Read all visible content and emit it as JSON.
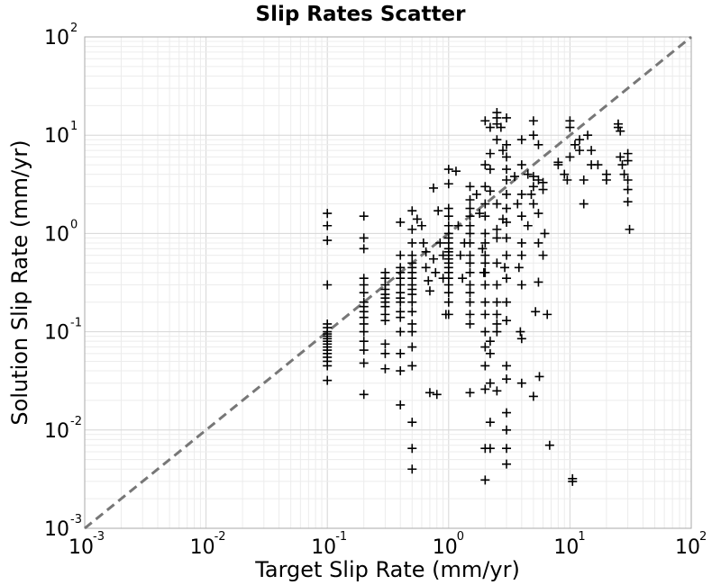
{
  "chart_data": {
    "type": "scatter",
    "title": "Slip Rates Scatter",
    "xlabel": "Target Slip Rate (mm/yr)",
    "ylabel": "Solution Slip Rate (mm/yr)",
    "x_scale": "log",
    "y_scale": "log",
    "xlim": [
      0.001,
      100
    ],
    "ylim": [
      0.001,
      100
    ],
    "x_ticks": [
      {
        "base": "10",
        "exp": "-3"
      },
      {
        "base": "10",
        "exp": "-2"
      },
      {
        "base": "10",
        "exp": "-1"
      },
      {
        "base": "10",
        "exp": "0"
      },
      {
        "base": "10",
        "exp": "1"
      },
      {
        "base": "10",
        "exp": "2"
      }
    ],
    "y_ticks": [
      {
        "base": "10",
        "exp": "-3"
      },
      {
        "base": "10",
        "exp": "-2"
      },
      {
        "base": "10",
        "exp": "-1"
      },
      {
        "base": "10",
        "exp": "0"
      },
      {
        "base": "10",
        "exp": "1"
      },
      {
        "base": "10",
        "exp": "2"
      }
    ],
    "grid": true,
    "marker": "+",
    "marker_color": "#000000",
    "reference_line": {
      "style": "dashed",
      "color": "#777777",
      "from": [
        0.001,
        0.001
      ],
      "to": [
        100,
        100
      ]
    },
    "points": [
      [
        0.1,
        1.6
      ],
      [
        0.1,
        1.2
      ],
      [
        0.1,
        0.85
      ],
      [
        0.1,
        0.3
      ],
      [
        0.1,
        0.12
      ],
      [
        0.1,
        0.11
      ],
      [
        0.1,
        0.1
      ],
      [
        0.1,
        0.095
      ],
      [
        0.1,
        0.09
      ],
      [
        0.1,
        0.085
      ],
      [
        0.1,
        0.08
      ],
      [
        0.1,
        0.075
      ],
      [
        0.1,
        0.07
      ],
      [
        0.1,
        0.065
      ],
      [
        0.1,
        0.06
      ],
      [
        0.1,
        0.055
      ],
      [
        0.1,
        0.05
      ],
      [
        0.1,
        0.045
      ],
      [
        0.1,
        0.032
      ],
      [
        0.2,
        1.5
      ],
      [
        0.2,
        0.9
      ],
      [
        0.2,
        0.7
      ],
      [
        0.2,
        0.35
      ],
      [
        0.2,
        0.3
      ],
      [
        0.2,
        0.25
      ],
      [
        0.2,
        0.2
      ],
      [
        0.2,
        0.18
      ],
      [
        0.2,
        0.16
      ],
      [
        0.2,
        0.14
      ],
      [
        0.2,
        0.12
      ],
      [
        0.2,
        0.1
      ],
      [
        0.2,
        0.08
      ],
      [
        0.2,
        0.065
      ],
      [
        0.2,
        0.048
      ],
      [
        0.2,
        0.023
      ],
      [
        0.3,
        0.4
      ],
      [
        0.3,
        0.35
      ],
      [
        0.3,
        0.3
      ],
      [
        0.3,
        0.27
      ],
      [
        0.3,
        0.24
      ],
      [
        0.3,
        0.22
      ],
      [
        0.3,
        0.2
      ],
      [
        0.3,
        0.18
      ],
      [
        0.3,
        0.15
      ],
      [
        0.3,
        0.13
      ],
      [
        0.3,
        0.075
      ],
      [
        0.3,
        0.06
      ],
      [
        0.3,
        0.042
      ],
      [
        0.4,
        1.3
      ],
      [
        0.4,
        0.6
      ],
      [
        0.4,
        0.45
      ],
      [
        0.4,
        0.4
      ],
      [
        0.4,
        0.35
      ],
      [
        0.4,
        0.3
      ],
      [
        0.4,
        0.25
      ],
      [
        0.4,
        0.22
      ],
      [
        0.4,
        0.2
      ],
      [
        0.4,
        0.16
      ],
      [
        0.4,
        0.14
      ],
      [
        0.4,
        0.1
      ],
      [
        0.4,
        0.06
      ],
      [
        0.4,
        0.04
      ],
      [
        0.4,
        0.018
      ],
      [
        0.5,
        1.7
      ],
      [
        0.5,
        1.1
      ],
      [
        0.5,
        0.8
      ],
      [
        0.5,
        0.6
      ],
      [
        0.5,
        0.5
      ],
      [
        0.5,
        0.45
      ],
      [
        0.5,
        0.4
      ],
      [
        0.5,
        0.35
      ],
      [
        0.5,
        0.3
      ],
      [
        0.5,
        0.27
      ],
      [
        0.5,
        0.24
      ],
      [
        0.5,
        0.2
      ],
      [
        0.5,
        0.16
      ],
      [
        0.5,
        0.12
      ],
      [
        0.5,
        0.1
      ],
      [
        0.5,
        0.07
      ],
      [
        0.5,
        0.045
      ],
      [
        0.5,
        0.012
      ],
      [
        0.5,
        0.0065
      ],
      [
        0.5,
        0.004
      ],
      [
        0.55,
        1.4
      ],
      [
        0.6,
        1.2
      ],
      [
        0.62,
        0.8
      ],
      [
        0.65,
        0.65
      ],
      [
        0.65,
        0.45
      ],
      [
        0.68,
        0.33
      ],
      [
        0.7,
        0.26
      ],
      [
        0.7,
        0.024
      ],
      [
        0.75,
        2.9
      ],
      [
        0.75,
        0.55
      ],
      [
        0.78,
        0.4
      ],
      [
        0.8,
        0.023
      ],
      [
        0.82,
        1.7
      ],
      [
        0.85,
        0.8
      ],
      [
        0.9,
        0.6
      ],
      [
        0.9,
        0.35
      ],
      [
        0.95,
        0.15
      ],
      [
        1.0,
        4.5
      ],
      [
        1.0,
        3.2
      ],
      [
        1.0,
        1.8
      ],
      [
        1.0,
        1.5
      ],
      [
        1.0,
        1.2
      ],
      [
        1.0,
        1.0
      ],
      [
        1.0,
        0.9
      ],
      [
        1.0,
        0.8
      ],
      [
        1.0,
        0.7
      ],
      [
        1.0,
        0.65
      ],
      [
        1.0,
        0.6
      ],
      [
        1.0,
        0.55
      ],
      [
        1.0,
        0.5
      ],
      [
        1.0,
        0.45
      ],
      [
        1.0,
        0.4
      ],
      [
        1.0,
        0.35
      ],
      [
        1.0,
        0.3
      ],
      [
        1.0,
        0.25
      ],
      [
        1.0,
        0.2
      ],
      [
        1.0,
        0.15
      ],
      [
        1.15,
        4.3
      ],
      [
        1.2,
        1.2
      ],
      [
        1.25,
        0.6
      ],
      [
        1.3,
        0.35
      ],
      [
        1.35,
        0.8
      ],
      [
        1.5,
        3.0
      ],
      [
        1.5,
        2.2
      ],
      [
        1.5,
        1.8
      ],
      [
        1.5,
        1.5
      ],
      [
        1.5,
        1.2
      ],
      [
        1.5,
        1.0
      ],
      [
        1.5,
        0.8
      ],
      [
        1.5,
        0.6
      ],
      [
        1.5,
        0.5
      ],
      [
        1.5,
        0.4
      ],
      [
        1.5,
        0.3
      ],
      [
        1.5,
        0.25
      ],
      [
        1.5,
        0.2
      ],
      [
        1.5,
        0.15
      ],
      [
        1.5,
        0.12
      ],
      [
        1.5,
        0.024
      ],
      [
        1.7,
        2.5
      ],
      [
        1.8,
        1.6
      ],
      [
        1.9,
        0.7
      ],
      [
        1.95,
        0.4
      ],
      [
        2.0,
        14
      ],
      [
        2.0,
        5.0
      ],
      [
        2.0,
        3.0
      ],
      [
        2.0,
        2.0
      ],
      [
        2.0,
        1.5
      ],
      [
        2.0,
        1.0
      ],
      [
        2.0,
        0.8
      ],
      [
        2.0,
        0.6
      ],
      [
        2.0,
        0.5
      ],
      [
        2.0,
        0.4
      ],
      [
        2.0,
        0.3
      ],
      [
        2.0,
        0.2
      ],
      [
        2.0,
        0.15
      ],
      [
        2.0,
        0.1
      ],
      [
        2.0,
        0.07
      ],
      [
        2.0,
        0.045
      ],
      [
        2.0,
        0.026
      ],
      [
        2.0,
        0.0065
      ],
      [
        2.0,
        0.0031
      ],
      [
        2.2,
        12
      ],
      [
        2.2,
        6.5
      ],
      [
        2.2,
        4.5
      ],
      [
        2.2,
        2.7
      ],
      [
        2.2,
        0.08
      ],
      [
        2.2,
        0.06
      ],
      [
        2.2,
        0.03
      ],
      [
        2.2,
        0.012
      ],
      [
        2.2,
        0.0065
      ],
      [
        2.5,
        17
      ],
      [
        2.5,
        15
      ],
      [
        2.5,
        13
      ],
      [
        2.5,
        9
      ],
      [
        2.5,
        2.0
      ],
      [
        2.5,
        1.1
      ],
      [
        2.5,
        0.9
      ],
      [
        2.5,
        0.5
      ],
      [
        2.5,
        0.3
      ],
      [
        2.5,
        0.2
      ],
      [
        2.5,
        0.15
      ],
      [
        2.5,
        0.12
      ],
      [
        2.5,
        0.1
      ],
      [
        2.5,
        0.025
      ],
      [
        2.7,
        12
      ],
      [
        2.8,
        7
      ],
      [
        2.8,
        1.4
      ],
      [
        2.9,
        0.45
      ],
      [
        3.0,
        15
      ],
      [
        3.0,
        8
      ],
      [
        3.0,
        6
      ],
      [
        3.0,
        4.5
      ],
      [
        3.0,
        3.5
      ],
      [
        3.0,
        2.5
      ],
      [
        3.0,
        1.8
      ],
      [
        3.0,
        1.3
      ],
      [
        3.0,
        0.9
      ],
      [
        3.0,
        0.6
      ],
      [
        3.0,
        0.35
      ],
      [
        3.0,
        0.2
      ],
      [
        3.0,
        0.13
      ],
      [
        3.0,
        0.045
      ],
      [
        3.0,
        0.033
      ],
      [
        3.0,
        0.015
      ],
      [
        3.0,
        0.01
      ],
      [
        3.0,
        0.0065
      ],
      [
        3.0,
        0.0045
      ],
      [
        3.5,
        3.8
      ],
      [
        3.7,
        2.0
      ],
      [
        3.8,
        0.45
      ],
      [
        3.9,
        0.1
      ],
      [
        4.0,
        9
      ],
      [
        4.0,
        5
      ],
      [
        4.0,
        2.5
      ],
      [
        4.0,
        1.5
      ],
      [
        4.0,
        0.8
      ],
      [
        4.0,
        0.6
      ],
      [
        4.0,
        0.3
      ],
      [
        4.0,
        0.085
      ],
      [
        4.0,
        0.03
      ],
      [
        4.5,
        4.0
      ],
      [
        4.5,
        1.2
      ],
      [
        4.8,
        2.5
      ],
      [
        5.0,
        14
      ],
      [
        5.0,
        10
      ],
      [
        5.0,
        3.8
      ],
      [
        5.0,
        3.0
      ],
      [
        5.0,
        2.0
      ],
      [
        5.0,
        0.022
      ],
      [
        5.2,
        0.16
      ],
      [
        5.5,
        8
      ],
      [
        5.5,
        3.5
      ],
      [
        5.5,
        1.6
      ],
      [
        5.5,
        0.8
      ],
      [
        5.5,
        0.32
      ],
      [
        5.6,
        0.035
      ],
      [
        6.0,
        3.3
      ],
      [
        6.0,
        2.8
      ],
      [
        6.0,
        0.6
      ],
      [
        6.2,
        1.0
      ],
      [
        6.5,
        0.15
      ],
      [
        6.8,
        0.007
      ],
      [
        8.0,
        5.3
      ],
      [
        8.0,
        5.0
      ],
      [
        9.0,
        4.0
      ],
      [
        9.5,
        3.5
      ],
      [
        10,
        14
      ],
      [
        10,
        12
      ],
      [
        10,
        6
      ],
      [
        10.5,
        0.0032
      ],
      [
        10.5,
        0.003
      ],
      [
        11,
        8
      ],
      [
        12,
        9
      ],
      [
        12,
        7
      ],
      [
        13,
        3.5
      ],
      [
        13,
        2.0
      ],
      [
        14,
        10
      ],
      [
        15,
        7
      ],
      [
        15,
        5
      ],
      [
        17,
        5
      ],
      [
        20,
        4
      ],
      [
        20,
        3.5
      ],
      [
        25,
        13
      ],
      [
        25,
        12
      ],
      [
        26,
        11
      ],
      [
        26,
        6
      ],
      [
        27,
        5
      ],
      [
        28,
        4
      ],
      [
        30,
        6.5
      ],
      [
        30,
        5.5
      ],
      [
        30,
        3.5
      ],
      [
        30,
        2.8
      ],
      [
        30,
        2.1
      ],
      [
        31,
        1.1
      ]
    ]
  }
}
